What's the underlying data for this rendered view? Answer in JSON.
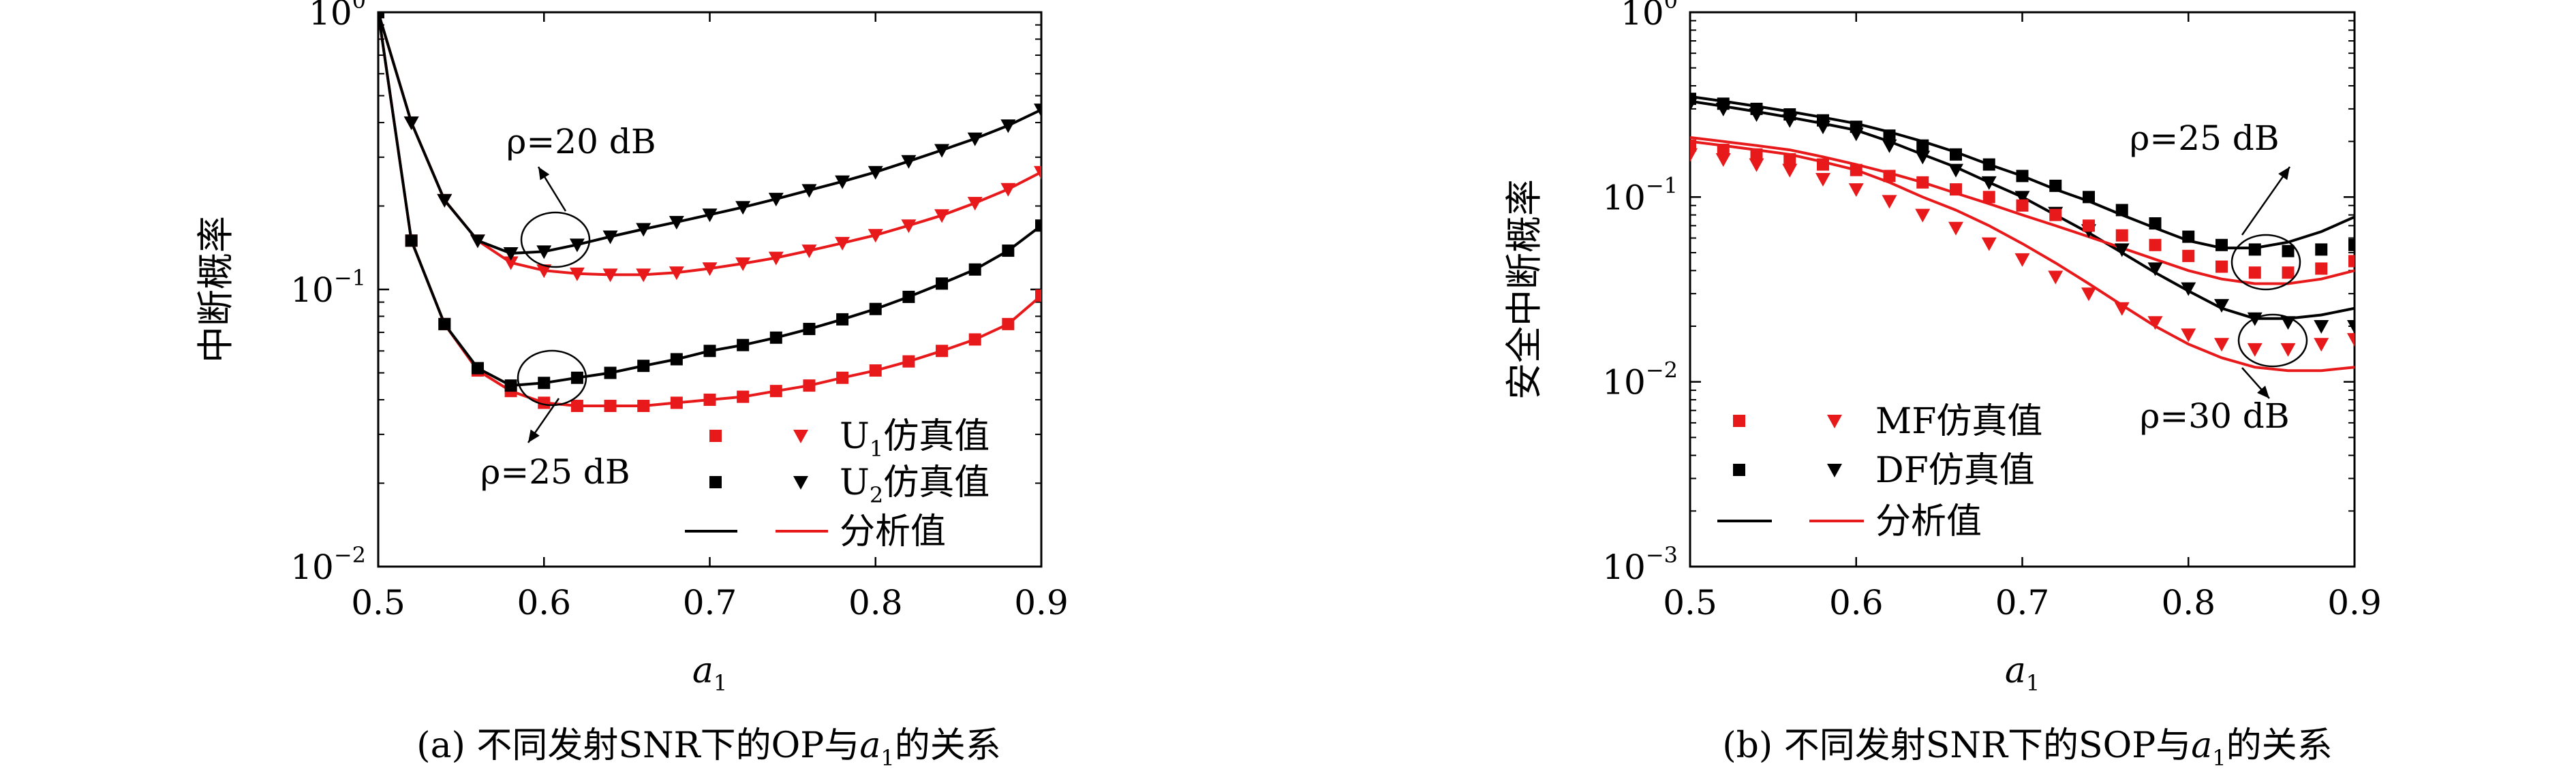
{
  "chart_data": [
    {
      "type": "line",
      "caption": "(a) 不同发射SNR下的OP与a₁的关系",
      "caption_prefix": "(a) 不同发射SNR下的OP与",
      "caption_suffix": "的关系",
      "xlabel": "a",
      "xlabel_sub": "1",
      "ylabel": "中断概率",
      "xlim": [
        0.5,
        0.9
      ],
      "ylim": [
        0.01,
        1
      ],
      "yscale": "log",
      "x_ticks": [
        "0.5",
        "0.6",
        "0.7",
        "0.8",
        "0.9"
      ],
      "y_ticks": [
        {
          "base": "10",
          "exp": "0"
        },
        {
          "base": "10",
          "exp": "−1"
        },
        {
          "base": "10",
          "exp": "−2"
        }
      ],
      "annotations": [
        {
          "text": "ρ=20 dB"
        },
        {
          "text": "ρ=25 dB"
        }
      ],
      "legend": {
        "position": "lower-right",
        "entries": [
          {
            "label": "U",
            "sub": "1",
            "suffix": "仿真值"
          },
          {
            "label": "U",
            "sub": "2",
            "suffix": "仿真值"
          },
          {
            "label": "分析值"
          }
        ]
      },
      "series": [
        {
          "name": "U1仿真值",
          "marker": "square",
          "color": "#e8191b",
          "x": [
            0.5,
            0.52,
            0.54,
            0.56,
            0.58,
            0.6,
            0.62,
            0.64,
            0.66,
            0.68,
            0.7,
            0.72,
            0.74,
            0.76,
            0.78,
            0.8,
            0.82,
            0.84,
            0.86,
            0.88,
            0.9
          ],
          "y": [
            1.0,
            0.15,
            0.075,
            0.051,
            0.043,
            0.039,
            0.038,
            0.038,
            0.038,
            0.039,
            0.04,
            0.041,
            0.043,
            0.045,
            0.048,
            0.051,
            0.055,
            0.06,
            0.066,
            0.075,
            0.095
          ]
        },
        {
          "name": "U1仿真值",
          "marker": "triangle",
          "color": "#e8191b",
          "x": [
            0.5,
            0.52,
            0.54,
            0.56,
            0.58,
            0.6,
            0.62,
            0.64,
            0.66,
            0.68,
            0.7,
            0.72,
            0.74,
            0.76,
            0.78,
            0.8,
            0.82,
            0.84,
            0.86,
            0.88,
            0.9
          ],
          "y": [
            1.0,
            0.4,
            0.21,
            0.15,
            0.125,
            0.117,
            0.114,
            0.113,
            0.113,
            0.115,
            0.119,
            0.124,
            0.13,
            0.138,
            0.147,
            0.157,
            0.17,
            0.185,
            0.205,
            0.23,
            0.265
          ]
        },
        {
          "name": "U2仿真值",
          "marker": "square",
          "color": "#000000",
          "x": [
            0.5,
            0.52,
            0.54,
            0.56,
            0.58,
            0.6,
            0.62,
            0.64,
            0.66,
            0.68,
            0.7,
            0.72,
            0.74,
            0.76,
            0.78,
            0.8,
            0.82,
            0.84,
            0.86,
            0.88,
            0.9
          ],
          "y": [
            1.0,
            0.15,
            0.075,
            0.052,
            0.045,
            0.046,
            0.048,
            0.05,
            0.053,
            0.056,
            0.06,
            0.063,
            0.067,
            0.072,
            0.078,
            0.085,
            0.094,
            0.105,
            0.118,
            0.138,
            0.17
          ]
        },
        {
          "name": "U2仿真值",
          "marker": "triangle",
          "color": "#000000",
          "x": [
            0.5,
            0.52,
            0.54,
            0.56,
            0.58,
            0.6,
            0.62,
            0.64,
            0.66,
            0.68,
            0.7,
            0.72,
            0.74,
            0.76,
            0.78,
            0.8,
            0.82,
            0.84,
            0.86,
            0.88,
            0.9
          ],
          "y": [
            1.0,
            0.4,
            0.21,
            0.15,
            0.135,
            0.137,
            0.145,
            0.155,
            0.165,
            0.175,
            0.186,
            0.198,
            0.212,
            0.228,
            0.245,
            0.265,
            0.29,
            0.318,
            0.35,
            0.39,
            0.445
          ]
        },
        {
          "name": "分析值",
          "style": "line",
          "color": "#e8191b",
          "x": [
            0.5,
            0.52,
            0.54,
            0.56,
            0.58,
            0.6,
            0.62,
            0.64,
            0.66,
            0.68,
            0.7,
            0.72,
            0.74,
            0.76,
            0.78,
            0.8,
            0.82,
            0.84,
            0.86,
            0.88,
            0.9
          ],
          "y": [
            1.0,
            0.15,
            0.075,
            0.051,
            0.043,
            0.039,
            0.038,
            0.038,
            0.038,
            0.039,
            0.04,
            0.041,
            0.043,
            0.045,
            0.048,
            0.051,
            0.055,
            0.06,
            0.066,
            0.075,
            0.095
          ]
        },
        {
          "style": "line",
          "color": "#e8191b",
          "x": [
            0.5,
            0.52,
            0.54,
            0.56,
            0.58,
            0.6,
            0.62,
            0.64,
            0.66,
            0.68,
            0.7,
            0.72,
            0.74,
            0.76,
            0.78,
            0.8,
            0.82,
            0.84,
            0.86,
            0.88,
            0.9
          ],
          "y": [
            1.0,
            0.4,
            0.21,
            0.15,
            0.125,
            0.117,
            0.114,
            0.113,
            0.113,
            0.115,
            0.119,
            0.124,
            0.13,
            0.138,
            0.147,
            0.157,
            0.17,
            0.185,
            0.205,
            0.23,
            0.265
          ]
        },
        {
          "style": "line",
          "color": "#000000",
          "x": [
            0.5,
            0.52,
            0.54,
            0.56,
            0.58,
            0.6,
            0.62,
            0.64,
            0.66,
            0.68,
            0.7,
            0.72,
            0.74,
            0.76,
            0.78,
            0.8,
            0.82,
            0.84,
            0.86,
            0.88,
            0.9
          ],
          "y": [
            1.0,
            0.15,
            0.075,
            0.052,
            0.045,
            0.046,
            0.048,
            0.05,
            0.053,
            0.056,
            0.06,
            0.063,
            0.067,
            0.072,
            0.078,
            0.085,
            0.094,
            0.105,
            0.118,
            0.138,
            0.17
          ]
        },
        {
          "style": "line",
          "color": "#000000",
          "x": [
            0.5,
            0.52,
            0.54,
            0.56,
            0.58,
            0.6,
            0.62,
            0.64,
            0.66,
            0.68,
            0.7,
            0.72,
            0.74,
            0.76,
            0.78,
            0.8,
            0.82,
            0.84,
            0.86,
            0.88,
            0.9
          ],
          "y": [
            1.0,
            0.4,
            0.21,
            0.15,
            0.135,
            0.137,
            0.145,
            0.155,
            0.165,
            0.175,
            0.186,
            0.198,
            0.212,
            0.228,
            0.245,
            0.265,
            0.29,
            0.318,
            0.35,
            0.39,
            0.445
          ]
        }
      ]
    },
    {
      "type": "line",
      "caption": "(b) 不同发射SNR下的SOP与a₁的关系",
      "caption_prefix": "(b) 不同发射SNR下的SOP与",
      "caption_suffix": "的关系",
      "xlabel": "a",
      "xlabel_sub": "1",
      "ylabel": "安全中断概率",
      "xlim": [
        0.5,
        0.9
      ],
      "ylim": [
        0.001,
        1
      ],
      "yscale": "log",
      "x_ticks": [
        "0.5",
        "0.6",
        "0.7",
        "0.8",
        "0.9"
      ],
      "y_ticks": [
        {
          "base": "10",
          "exp": "0"
        },
        {
          "base": "10",
          "exp": "−1"
        },
        {
          "base": "10",
          "exp": "−2"
        },
        {
          "base": "10",
          "exp": "−3"
        }
      ],
      "annotations": [
        {
          "text": "ρ=25 dB"
        },
        {
          "text": "ρ=30 dB"
        }
      ],
      "legend": {
        "position": "lower-left",
        "entries": [
          {
            "label": "MF仿真值"
          },
          {
            "label": "DF仿真值"
          },
          {
            "label": "分析值"
          }
        ]
      },
      "series": [
        {
          "name": "DF仿真值",
          "marker": "square",
          "color": "#000000",
          "x": [
            0.5,
            0.52,
            0.54,
            0.56,
            0.58,
            0.6,
            0.62,
            0.64,
            0.66,
            0.68,
            0.7,
            0.72,
            0.74,
            0.76,
            0.78,
            0.8,
            0.82,
            0.84,
            0.86,
            0.88,
            0.9
          ],
          "y": [
            0.34,
            0.32,
            0.3,
            0.28,
            0.26,
            0.24,
            0.215,
            0.19,
            0.17,
            0.15,
            0.13,
            0.115,
            0.1,
            0.085,
            0.072,
            0.061,
            0.055,
            0.052,
            0.051,
            0.052,
            0.055
          ]
        },
        {
          "name": "DF仿真值",
          "marker": "triangle",
          "color": "#000000",
          "x": [
            0.5,
            0.52,
            0.54,
            0.56,
            0.58,
            0.6,
            0.62,
            0.64,
            0.66,
            0.68,
            0.7,
            0.72,
            0.74,
            0.76,
            0.78,
            0.8,
            0.82,
            0.84,
            0.86,
            0.88,
            0.9
          ],
          "y": [
            0.32,
            0.3,
            0.28,
            0.26,
            0.24,
            0.22,
            0.19,
            0.165,
            0.14,
            0.12,
            0.1,
            0.082,
            0.066,
            0.052,
            0.041,
            0.032,
            0.026,
            0.022,
            0.021,
            0.02,
            0.02
          ]
        },
        {
          "name": "MF仿真值",
          "marker": "square",
          "color": "#e8191b",
          "x": [
            0.5,
            0.52,
            0.54,
            0.56,
            0.58,
            0.6,
            0.62,
            0.64,
            0.66,
            0.68,
            0.7,
            0.72,
            0.74,
            0.76,
            0.78,
            0.8,
            0.82,
            0.84,
            0.86,
            0.88,
            0.9
          ],
          "y": [
            0.19,
            0.18,
            0.17,
            0.16,
            0.15,
            0.14,
            0.13,
            0.12,
            0.11,
            0.1,
            0.09,
            0.08,
            0.07,
            0.062,
            0.055,
            0.048,
            0.042,
            0.039,
            0.039,
            0.041,
            0.045
          ]
        },
        {
          "name": "MF仿真值",
          "marker": "triangle",
          "color": "#e8191b",
          "x": [
            0.5,
            0.52,
            0.54,
            0.56,
            0.58,
            0.6,
            0.62,
            0.64,
            0.66,
            0.68,
            0.7,
            0.72,
            0.74,
            0.76,
            0.78,
            0.8,
            0.82,
            0.84,
            0.86,
            0.88,
            0.9
          ],
          "y": [
            0.17,
            0.16,
            0.15,
            0.14,
            0.125,
            0.11,
            0.095,
            0.08,
            0.068,
            0.056,
            0.046,
            0.037,
            0.03,
            0.025,
            0.021,
            0.018,
            0.016,
            0.015,
            0.015,
            0.016,
            0.017
          ]
        },
        {
          "style": "line",
          "color": "#000000",
          "x": [
            0.5,
            0.52,
            0.54,
            0.56,
            0.58,
            0.6,
            0.62,
            0.64,
            0.66,
            0.68,
            0.7,
            0.72,
            0.74,
            0.76,
            0.78,
            0.8,
            0.82,
            0.84,
            0.86,
            0.88,
            0.9
          ],
          "y": [
            0.35,
            0.33,
            0.31,
            0.29,
            0.27,
            0.25,
            0.225,
            0.2,
            0.175,
            0.15,
            0.13,
            0.11,
            0.095,
            0.08,
            0.068,
            0.058,
            0.053,
            0.053,
            0.057,
            0.065,
            0.078
          ]
        },
        {
          "name": "分析值",
          "style": "line",
          "color": "#000000",
          "x": [
            0.5,
            0.52,
            0.54,
            0.56,
            0.58,
            0.6,
            0.62,
            0.64,
            0.66,
            0.68,
            0.7,
            0.72,
            0.74,
            0.76,
            0.78,
            0.8,
            0.82,
            0.84,
            0.86,
            0.88,
            0.9
          ],
          "y": [
            0.33,
            0.31,
            0.29,
            0.27,
            0.25,
            0.23,
            0.2,
            0.17,
            0.145,
            0.12,
            0.1,
            0.08,
            0.064,
            0.05,
            0.039,
            0.031,
            0.025,
            0.022,
            0.022,
            0.023,
            0.025
          ]
        },
        {
          "style": "line",
          "color": "#e8191b",
          "x": [
            0.5,
            0.52,
            0.54,
            0.56,
            0.58,
            0.6,
            0.62,
            0.64,
            0.66,
            0.68,
            0.7,
            0.72,
            0.74,
            0.76,
            0.78,
            0.8,
            0.82,
            0.84,
            0.86,
            0.88,
            0.9
          ],
          "y": [
            0.21,
            0.2,
            0.19,
            0.18,
            0.165,
            0.15,
            0.135,
            0.12,
            0.105,
            0.092,
            0.08,
            0.07,
            0.061,
            0.053,
            0.046,
            0.04,
            0.036,
            0.034,
            0.034,
            0.036,
            0.04
          ]
        },
        {
          "style": "line",
          "color": "#e8191b",
          "x": [
            0.5,
            0.52,
            0.54,
            0.56,
            0.58,
            0.6,
            0.62,
            0.64,
            0.66,
            0.68,
            0.7,
            0.72,
            0.74,
            0.76,
            0.78,
            0.8,
            0.82,
            0.84,
            0.86,
            0.88,
            0.9
          ],
          "y": [
            0.2,
            0.19,
            0.18,
            0.17,
            0.155,
            0.14,
            0.12,
            0.1,
            0.085,
            0.07,
            0.056,
            0.044,
            0.034,
            0.026,
            0.02,
            0.016,
            0.0135,
            0.012,
            0.0115,
            0.0115,
            0.012
          ]
        }
      ]
    }
  ]
}
